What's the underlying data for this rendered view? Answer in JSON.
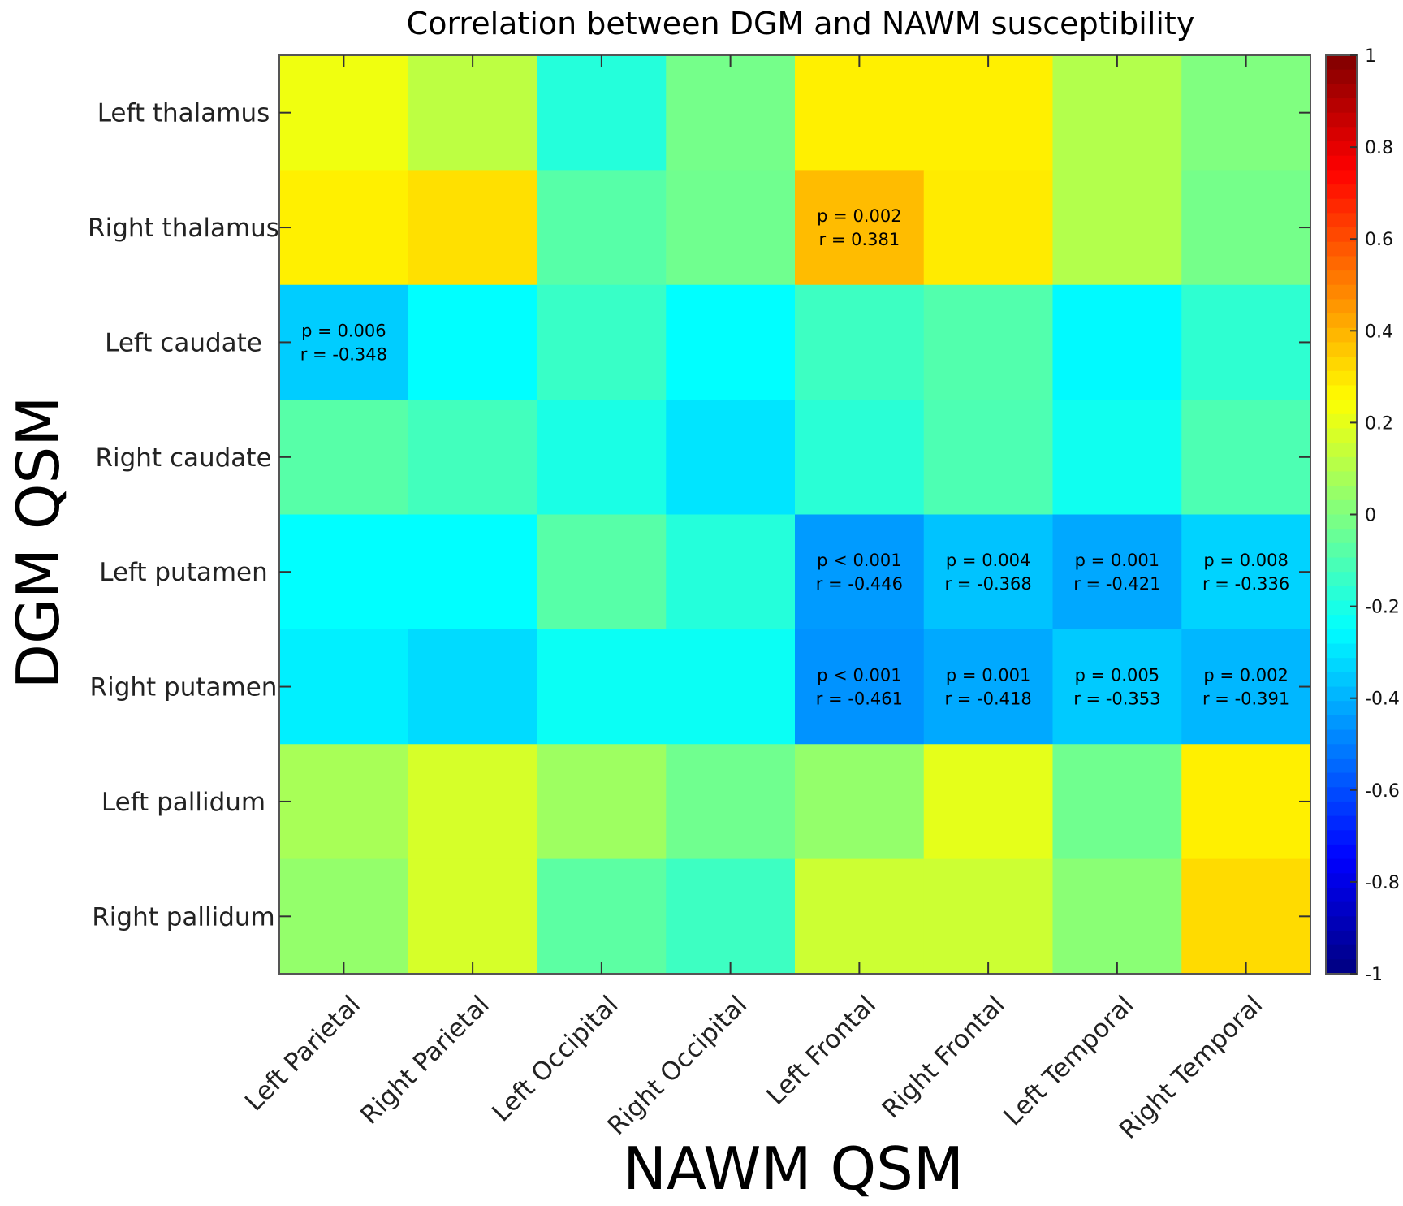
{
  "chart_data": {
    "type": "heatmap",
    "title": "Correlation between DGM and NAWM susceptibility",
    "xlabel": "NAWM QSM",
    "ylabel": "DGM QSM",
    "rows": [
      "Left thalamus",
      "Right thalamus",
      "Left caudate",
      "Right caudate",
      "Left putamen",
      "Right putamen",
      "Left pallidum",
      "Right pallidum"
    ],
    "cols": [
      "Left Parietal",
      "Right Parietal",
      "Left Occipital",
      "Right Occipital",
      "Left Frontal",
      "Right Frontal",
      "Left Temporal",
      "Right Temporal"
    ],
    "values": [
      [
        0.22,
        0.12,
        -0.18,
        -0.02,
        0.28,
        0.28,
        0.1,
        0.0
      ],
      [
        0.28,
        0.31,
        -0.08,
        -0.03,
        0.381,
        0.29,
        0.1,
        -0.02
      ],
      [
        -0.348,
        -0.25,
        -0.14,
        -0.25,
        -0.13,
        -0.09,
        -0.26,
        -0.16
      ],
      [
        -0.08,
        -0.12,
        -0.2,
        -0.3,
        -0.17,
        -0.1,
        -0.22,
        -0.1
      ],
      [
        -0.25,
        -0.25,
        -0.08,
        -0.18,
        -0.446,
        -0.368,
        -0.421,
        -0.336
      ],
      [
        -0.28,
        -0.32,
        -0.23,
        -0.23,
        -0.461,
        -0.418,
        -0.353,
        -0.391
      ],
      [
        0.08,
        0.17,
        0.06,
        -0.03,
        0.04,
        0.2,
        -0.03,
        0.28
      ],
      [
        0.04,
        0.17,
        -0.07,
        -0.13,
        0.15,
        0.15,
        0.02,
        0.32
      ]
    ],
    "annotations": [
      {
        "row": 1,
        "col": 4,
        "p": "p = 0.002",
        "r": "r = 0.381"
      },
      {
        "row": 2,
        "col": 0,
        "p": "p = 0.006",
        "r": "r = -0.348"
      },
      {
        "row": 4,
        "col": 4,
        "p": "p < 0.001",
        "r": "r = -0.446"
      },
      {
        "row": 4,
        "col": 5,
        "p": "p = 0.004",
        "r": "r = -0.368"
      },
      {
        "row": 4,
        "col": 6,
        "p": "p = 0.001",
        "r": "r = -0.421"
      },
      {
        "row": 4,
        "col": 7,
        "p": "p = 0.008",
        "r": "r = -0.336"
      },
      {
        "row": 5,
        "col": 4,
        "p": "p < 0.001",
        "r": "r = -0.461"
      },
      {
        "row": 5,
        "col": 5,
        "p": "p = 0.001",
        "r": "r = -0.418"
      },
      {
        "row": 5,
        "col": 6,
        "p": "p = 0.005",
        "r": "r = -0.353"
      },
      {
        "row": 5,
        "col": 7,
        "p": "p = 0.002",
        "r": "r = -0.391"
      }
    ],
    "colorbar": {
      "range": [
        -1,
        1
      ],
      "colormap": "jet",
      "ticks": [
        1,
        0.8,
        0.6,
        0.4,
        0.2,
        0,
        -0.2,
        -0.4,
        -0.6,
        -0.8,
        -1
      ],
      "tick_labels": [
        "1",
        "0.8",
        "0.6",
        "0.4",
        "0.2",
        "0",
        "-0.2",
        "-0.4",
        "-0.6",
        "-0.8",
        "-1"
      ]
    },
    "legend_position": "right"
  }
}
